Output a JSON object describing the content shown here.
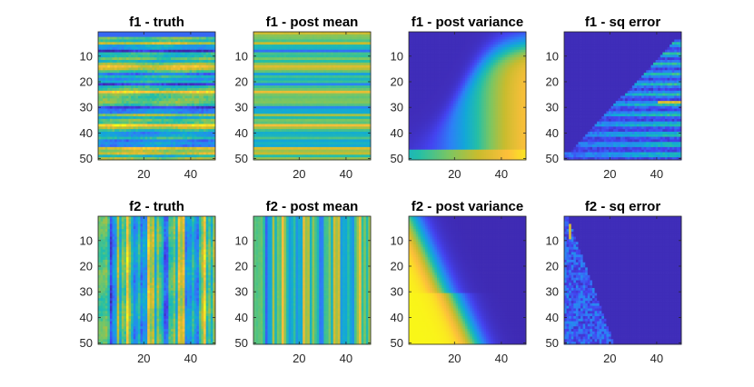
{
  "chart_data": [
    {
      "type": "heatmap",
      "title": "f1 - truth",
      "field": "f1",
      "kind": "truth",
      "xlim": [
        1,
        50
      ],
      "ylim": [
        1,
        50
      ],
      "xticks": [
        20,
        40
      ],
      "yticks": [
        10,
        20,
        30,
        40,
        50
      ],
      "xtick_labels": [
        "20",
        "40"
      ],
      "ytick_labels": [
        "10",
        "20",
        "30",
        "40",
        "50"
      ]
    },
    {
      "type": "heatmap",
      "title": "f1 - post mean",
      "field": "f1",
      "kind": "mean",
      "xlim": [
        1,
        50
      ],
      "ylim": [
        1,
        50
      ],
      "xticks": [
        20,
        40
      ],
      "yticks": [
        10,
        20,
        30,
        40,
        50
      ],
      "xtick_labels": [
        "20",
        "40"
      ],
      "ytick_labels": [
        "10",
        "20",
        "30",
        "40",
        "50"
      ]
    },
    {
      "type": "heatmap",
      "title": "f1 - post variance",
      "field": "f1",
      "kind": "variance",
      "xlim": [
        1,
        50
      ],
      "ylim": [
        1,
        50
      ],
      "xticks": [
        20,
        40
      ],
      "yticks": [
        10,
        20,
        30,
        40,
        50
      ],
      "xtick_labels": [
        "20",
        "40"
      ],
      "ytick_labels": [
        "10",
        "20",
        "30",
        "40",
        "50"
      ]
    },
    {
      "type": "heatmap",
      "title": "f1 - sq error",
      "field": "f1",
      "kind": "error",
      "xlim": [
        1,
        50
      ],
      "ylim": [
        1,
        50
      ],
      "xticks": [
        20,
        40
      ],
      "yticks": [
        10,
        20,
        30,
        40,
        50
      ],
      "xtick_labels": [
        "20",
        "40"
      ],
      "ytick_labels": [
        "10",
        "20",
        "30",
        "40",
        "50"
      ]
    },
    {
      "type": "heatmap",
      "title": "f2 - truth",
      "field": "f2",
      "kind": "truth",
      "xlim": [
        1,
        50
      ],
      "ylim": [
        1,
        50
      ],
      "xticks": [
        20,
        40
      ],
      "yticks": [
        10,
        20,
        30,
        40,
        50
      ],
      "xtick_labels": [
        "20",
        "40"
      ],
      "ytick_labels": [
        "10",
        "20",
        "30",
        "40",
        "50"
      ]
    },
    {
      "type": "heatmap",
      "title": "f2 - post mean",
      "field": "f2",
      "kind": "mean",
      "xlim": [
        1,
        50
      ],
      "ylim": [
        1,
        50
      ],
      "xticks": [
        20,
        40
      ],
      "yticks": [
        10,
        20,
        30,
        40,
        50
      ],
      "xtick_labels": [
        "20",
        "40"
      ],
      "ytick_labels": [
        "10",
        "20",
        "30",
        "40",
        "50"
      ]
    },
    {
      "type": "heatmap",
      "title": "f2 - post variance",
      "field": "f2",
      "kind": "variance",
      "xlim": [
        1,
        50
      ],
      "ylim": [
        1,
        50
      ],
      "xticks": [
        20,
        40
      ],
      "yticks": [
        10,
        20,
        30,
        40,
        50
      ],
      "xtick_labels": [
        "20",
        "40"
      ],
      "ytick_labels": [
        "10",
        "20",
        "30",
        "40",
        "50"
      ]
    },
    {
      "type": "heatmap",
      "title": "f2 - sq error",
      "field": "f2",
      "kind": "error",
      "xlim": [
        1,
        50
      ],
      "ylim": [
        1,
        50
      ],
      "xticks": [
        20,
        40
      ],
      "yticks": [
        10,
        20,
        30,
        40,
        50
      ],
      "xtick_labels": [
        "20",
        "40"
      ],
      "ytick_labels": [
        "10",
        "20",
        "30",
        "40",
        "50"
      ]
    }
  ],
  "colormap": [
    "#3e26a8",
    "#4443f0",
    "#2d80f6",
    "#12a8d8",
    "#25bfa6",
    "#7ac663",
    "#c9bc2e",
    "#fdbf3b",
    "#f9fb15"
  ],
  "grid_size": 50
}
